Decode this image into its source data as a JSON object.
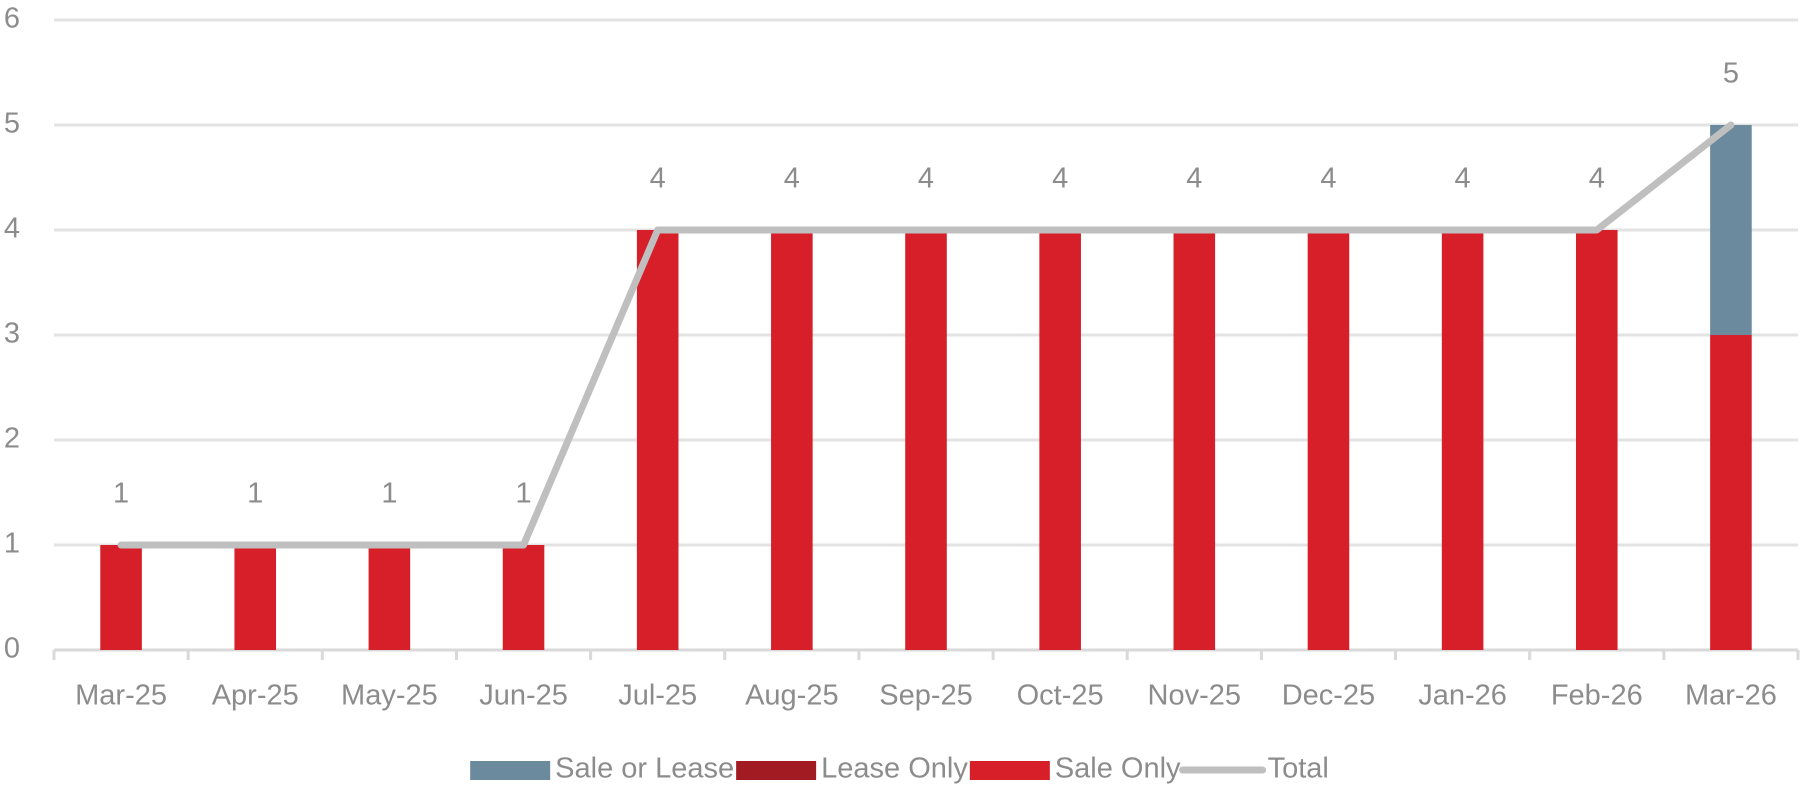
{
  "chart_data": {
    "type": "bar",
    "stacked": true,
    "grid": true,
    "categories": [
      "Mar-25",
      "Apr-25",
      "May-25",
      "Jun-25",
      "Jul-25",
      "Aug-25",
      "Sep-25",
      "Oct-25",
      "Nov-25",
      "Dec-25",
      "Jan-26",
      "Feb-26",
      "Mar-26"
    ],
    "series": [
      {
        "name": "Sale or Lease",
        "color": "#6b8a9e",
        "values": [
          0,
          0,
          0,
          0,
          0,
          0,
          0,
          0,
          0,
          0,
          0,
          0,
          2
        ]
      },
      {
        "name": "Lease Only",
        "color": "#a31b22",
        "values": [
          0,
          0,
          0,
          0,
          0,
          0,
          0,
          0,
          0,
          0,
          0,
          0,
          0
        ]
      },
      {
        "name": "Sale Only",
        "color": "#d71f29",
        "values": [
          1,
          1,
          1,
          1,
          4,
          4,
          4,
          4,
          4,
          4,
          4,
          4,
          3
        ]
      },
      {
        "name": "Total",
        "color": "#bfbfbf",
        "type": "line",
        "data_labels": true,
        "values": [
          1,
          1,
          1,
          1,
          4,
          4,
          4,
          4,
          4,
          4,
          4,
          4,
          5
        ]
      }
    ],
    "ylim": [
      0,
      6
    ],
    "yticks": [
      0,
      1,
      2,
      3,
      4,
      5,
      6
    ],
    "legend": "bottom"
  }
}
